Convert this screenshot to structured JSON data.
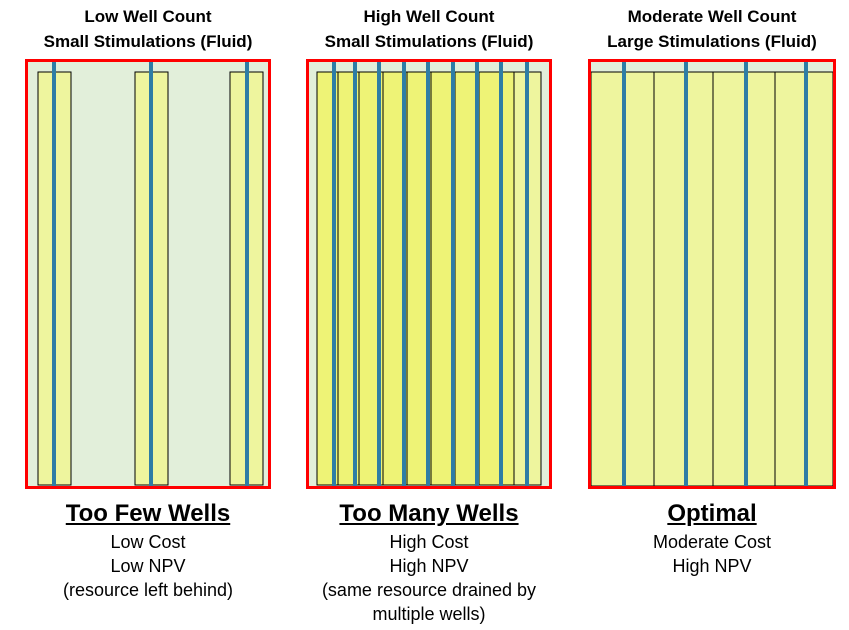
{
  "panels": [
    {
      "heading": [
        "Low Well Count",
        "Small Stimulations (Fluid)"
      ],
      "title": "Too Few Wells",
      "lines": [
        "Low Cost",
        "Low NPV",
        "(resource left behind)"
      ]
    },
    {
      "heading": [
        "High Well Count",
        "Small Stimulations (Fluid)"
      ],
      "title": "Too Many Wells",
      "lines": [
        "High Cost",
        "High NPV",
        "(same resource drained by",
        "multiple wells)"
      ]
    },
    {
      "heading": [
        "Moderate Well Count",
        "Large Stimulations (Fluid)"
      ],
      "title": "Optimal",
      "lines": [
        "Moderate Cost",
        "High NPV"
      ]
    }
  ],
  "colors": {
    "frame": "#ff0000",
    "background": "#e2efda",
    "stimulation": "#eef59e",
    "well": "#2e7da5"
  }
}
